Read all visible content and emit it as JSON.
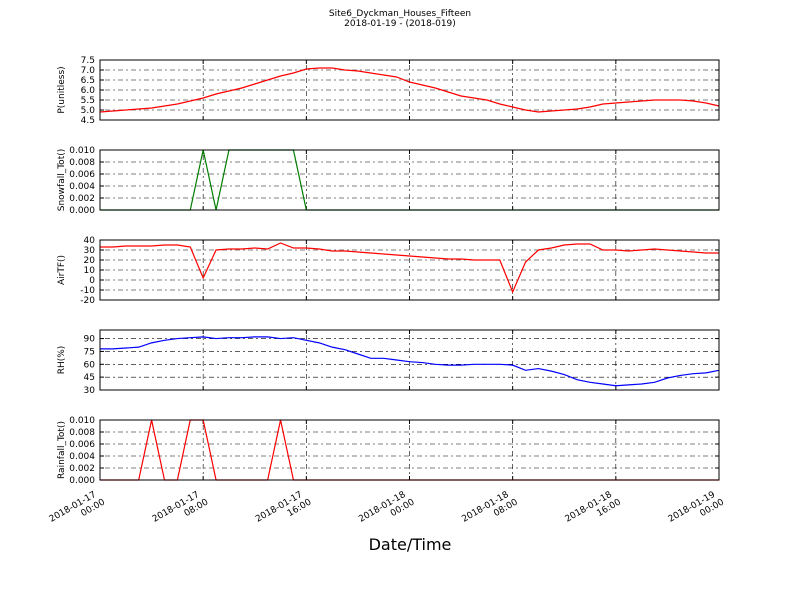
{
  "figure": {
    "title": "Site6_Dyckman_Houses_Fifteen",
    "subtitle": "2018-01-19 - (2018-019)",
    "xlabel": "Date/Time",
    "x": [
      "2018-01-17 00:00",
      "2018-01-17 01:00",
      "2018-01-17 02:00",
      "2018-01-17 03:00",
      "2018-01-17 04:00",
      "2018-01-17 05:00",
      "2018-01-17 06:00",
      "2018-01-17 07:00",
      "2018-01-17 08:00",
      "2018-01-17 09:00",
      "2018-01-17 10:00",
      "2018-01-17 11:00",
      "2018-01-17 12:00",
      "2018-01-17 13:00",
      "2018-01-17 14:00",
      "2018-01-17 15:00",
      "2018-01-17 16:00",
      "2018-01-17 17:00",
      "2018-01-17 18:00",
      "2018-01-17 19:00",
      "2018-01-17 20:00",
      "2018-01-17 21:00",
      "2018-01-17 22:00",
      "2018-01-17 23:00",
      "2018-01-18 00:00",
      "2018-01-18 01:00",
      "2018-01-18 02:00",
      "2018-01-18 03:00",
      "2018-01-18 04:00",
      "2018-01-18 05:00",
      "2018-01-18 06:00",
      "2018-01-18 07:00",
      "2018-01-18 08:00",
      "2018-01-18 09:00",
      "2018-01-18 10:00",
      "2018-01-18 11:00",
      "2018-01-18 12:00",
      "2018-01-18 13:00",
      "2018-01-18 14:00",
      "2018-01-18 15:00",
      "2018-01-18 16:00",
      "2018-01-18 17:00",
      "2018-01-18 18:00",
      "2018-01-18 19:00",
      "2018-01-18 20:00",
      "2018-01-18 21:00",
      "2018-01-18 22:00",
      "2018-01-18 23:00",
      "2018-01-19 00:00"
    ],
    "xlim": [
      "2018-01-17 00:00",
      "2018-01-19 00:00"
    ],
    "xticks": [
      "2018-01-17 00:00",
      "2018-01-17 08:00",
      "2018-01-17 16:00",
      "2018-01-18 00:00",
      "2018-01-18 08:00",
      "2018-01-18 16:00",
      "2018-01-19 00:00"
    ]
  },
  "chart_data": [
    {
      "type": "line",
      "ylabel": "P(unitless)",
      "color": "#ff0000",
      "grid": true,
      "ylim": [
        4.5,
        7.5
      ],
      "yticks": [
        4.5,
        {
          "value": 5,
          "label": "5.0"
        },
        5.5,
        {
          "value": 6,
          "label": "6.0"
        },
        6.5,
        {
          "value": 7,
          "label": "7.0"
        },
        7.5
      ],
      "values": [
        4.9,
        4.95,
        5.0,
        5.05,
        5.1,
        5.2,
        5.3,
        5.45,
        5.6,
        5.8,
        5.95,
        6.1,
        6.3,
        6.5,
        6.7,
        6.85,
        7.05,
        7.1,
        7.1,
        7.0,
        6.95,
        6.85,
        6.75,
        6.65,
        6.4,
        6.25,
        6.1,
        5.9,
        5.7,
        5.6,
        5.5,
        5.3,
        5.15,
        5.0,
        4.9,
        4.95,
        5.0,
        5.05,
        5.15,
        5.3,
        5.35,
        5.4,
        5.45,
        5.5,
        5.5,
        5.5,
        5.45,
        5.35,
        5.2
      ]
    },
    {
      "type": "line",
      "ylabel": "Snowfall_Tot()",
      "color": "#007f00",
      "grid": true,
      "ylim": [
        0,
        0.01
      ],
      "yticks": [
        {
          "value": 0,
          "label": "0.000"
        },
        {
          "value": 0.002,
          "label": "0.002"
        },
        {
          "value": 0.004,
          "label": "0.004"
        },
        {
          "value": 0.006,
          "label": "0.006"
        },
        {
          "value": 0.008,
          "label": "0.008"
        },
        {
          "value": 0.01,
          "label": "0.010"
        }
      ],
      "values": [
        0,
        0,
        0,
        0,
        0,
        0,
        0,
        0,
        0.01,
        0,
        0.01,
        0.01,
        0.01,
        0.01,
        0.01,
        0.01,
        0,
        0,
        0,
        0,
        0,
        0,
        0,
        0,
        0,
        0,
        0,
        0,
        0,
        0,
        0,
        0,
        0,
        0,
        0,
        0,
        0,
        0,
        0,
        0,
        0,
        0,
        0,
        0,
        0,
        0,
        0,
        0,
        0
      ]
    },
    {
      "type": "line",
      "ylabel": "AirTF()",
      "color": "#ff0000",
      "grid": true,
      "ylim": [
        -20,
        40
      ],
      "yticks": [
        -20,
        -10,
        0,
        10,
        20,
        30,
        40
      ],
      "values": [
        33,
        33,
        34,
        34,
        34,
        35,
        35,
        33,
        2,
        30,
        31,
        31,
        32,
        31,
        37,
        32,
        32,
        31,
        29,
        29,
        28,
        27,
        26,
        25,
        24,
        23,
        22,
        21,
        21,
        20,
        20,
        20,
        -12,
        18,
        30,
        32,
        35,
        36,
        36,
        30,
        30,
        29,
        30,
        31,
        30,
        29,
        28,
        27,
        27
      ]
    },
    {
      "type": "line",
      "ylabel": "RH(%)",
      "color": "#0000ff",
      "grid": true,
      "ylim": [
        30,
        100
      ],
      "yticks": [
        30,
        45,
        60,
        75,
        90
      ],
      "values": [
        78,
        78,
        79,
        80,
        85,
        88,
        90,
        91,
        92,
        90,
        91,
        91,
        92,
        92,
        90,
        91,
        88,
        85,
        80,
        77,
        72,
        67,
        67,
        65,
        63,
        62,
        60,
        59,
        59,
        60,
        60,
        60,
        59,
        53,
        55,
        52,
        48,
        42,
        39,
        37,
        35,
        36,
        37,
        39,
        44,
        47,
        49,
        50,
        53
      ]
    },
    {
      "type": "line",
      "ylabel": "Rainfall_Tot()",
      "color": "#ff0000",
      "grid": true,
      "ylim": [
        0,
        0.01
      ],
      "yticks": [
        {
          "value": 0,
          "label": "0.000"
        },
        {
          "value": 0.002,
          "label": "0.002"
        },
        {
          "value": 0.004,
          "label": "0.004"
        },
        {
          "value": 0.006,
          "label": "0.006"
        },
        {
          "value": 0.008,
          "label": "0.008"
        },
        {
          "value": 0.01,
          "label": "0.010"
        }
      ],
      "values": [
        0,
        0,
        0,
        0,
        0.01,
        0,
        0,
        0.01,
        0.01,
        0,
        0,
        0,
        0,
        0,
        0.01,
        0,
        0,
        0,
        0,
        0,
        0,
        0,
        0,
        0,
        0,
        0,
        0,
        0,
        0,
        0,
        0,
        0,
        0,
        0,
        0,
        0,
        0,
        0,
        0,
        0,
        0,
        0,
        0,
        0,
        0,
        0,
        0,
        0,
        0
      ]
    }
  ]
}
